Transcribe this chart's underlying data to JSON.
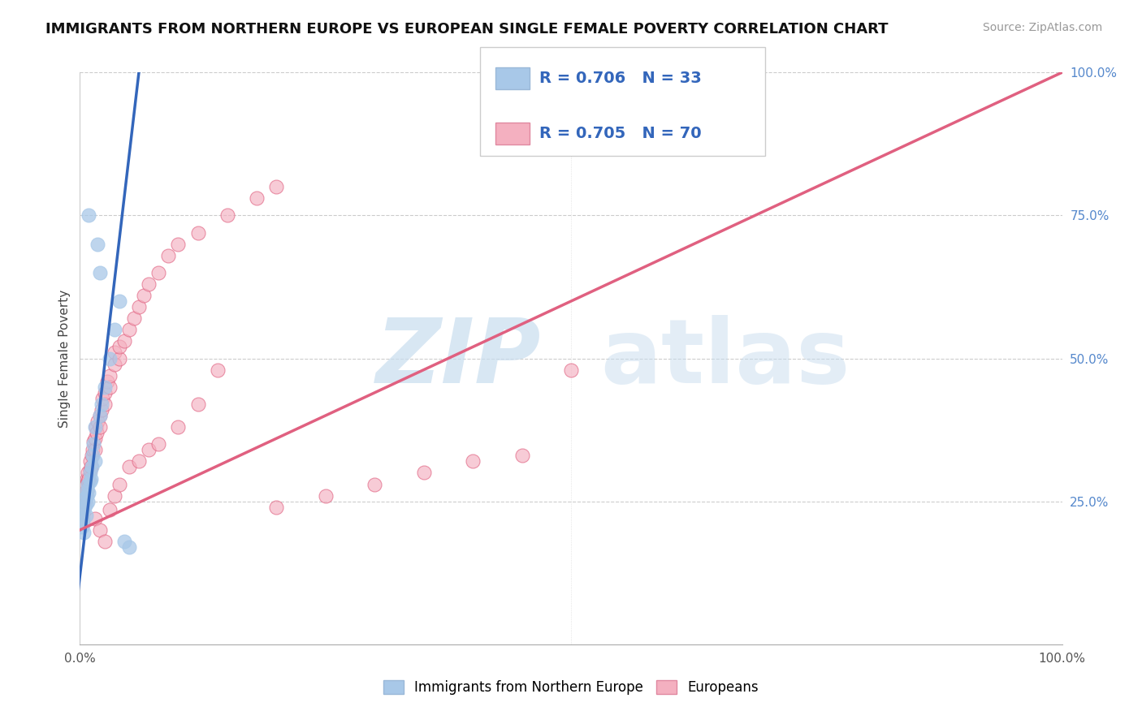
{
  "title": "IMMIGRANTS FROM NORTHERN EUROPE VS EUROPEAN SINGLE FEMALE POVERTY CORRELATION CHART",
  "source": "Source: ZipAtlas.com",
  "ylabel": "Single Female Poverty",
  "legend_blue_label": "Immigrants from Northern Europe",
  "legend_pink_label": "Europeans",
  "blue_color": "#a8c8e8",
  "blue_line_color": "#3366bb",
  "pink_color": "#f4b0c0",
  "pink_line_color": "#e06080",
  "blue_scatter": [
    [
      0.2,
      20.5
    ],
    [
      0.3,
      21.0
    ],
    [
      0.3,
      22.0
    ],
    [
      0.4,
      19.5
    ],
    [
      0.4,
      23.5
    ],
    [
      0.5,
      24.0
    ],
    [
      0.5,
      25.5
    ],
    [
      0.6,
      22.5
    ],
    [
      0.6,
      24.5
    ],
    [
      0.7,
      26.0
    ],
    [
      0.7,
      27.0
    ],
    [
      0.8,
      25.0
    ],
    [
      0.8,
      28.0
    ],
    [
      0.9,
      26.5
    ],
    [
      1.0,
      28.5
    ],
    [
      1.0,
      30.0
    ],
    [
      1.1,
      29.0
    ],
    [
      1.2,
      31.0
    ],
    [
      1.3,
      33.0
    ],
    [
      1.4,
      35.0
    ],
    [
      1.5,
      32.0
    ],
    [
      1.5,
      38.0
    ],
    [
      2.0,
      40.0
    ],
    [
      2.2,
      42.0
    ],
    [
      2.5,
      45.0
    ],
    [
      3.0,
      50.0
    ],
    [
      3.5,
      55.0
    ],
    [
      4.0,
      60.0
    ],
    [
      1.8,
      70.0
    ],
    [
      2.0,
      65.0
    ],
    [
      0.9,
      75.0
    ],
    [
      4.5,
      18.0
    ],
    [
      5.0,
      17.0
    ]
  ],
  "pink_scatter": [
    [
      0.2,
      22.0
    ],
    [
      0.3,
      23.0
    ],
    [
      0.3,
      25.0
    ],
    [
      0.4,
      24.0
    ],
    [
      0.4,
      26.0
    ],
    [
      0.5,
      25.0
    ],
    [
      0.5,
      27.5
    ],
    [
      0.6,
      26.0
    ],
    [
      0.6,
      28.0
    ],
    [
      0.7,
      27.0
    ],
    [
      0.7,
      29.0
    ],
    [
      0.8,
      28.5
    ],
    [
      0.8,
      30.0
    ],
    [
      0.9,
      29.0
    ],
    [
      1.0,
      30.5
    ],
    [
      1.0,
      32.0
    ],
    [
      1.1,
      31.0
    ],
    [
      1.2,
      33.0
    ],
    [
      1.3,
      34.0
    ],
    [
      1.4,
      35.5
    ],
    [
      1.5,
      34.0
    ],
    [
      1.5,
      36.0
    ],
    [
      1.6,
      38.0
    ],
    [
      1.7,
      37.0
    ],
    [
      1.8,
      39.0
    ],
    [
      2.0,
      38.0
    ],
    [
      2.0,
      40.0
    ],
    [
      2.2,
      41.0
    ],
    [
      2.3,
      43.0
    ],
    [
      2.5,
      42.0
    ],
    [
      2.5,
      44.0
    ],
    [
      2.8,
      46.0
    ],
    [
      3.0,
      45.0
    ],
    [
      3.0,
      47.0
    ],
    [
      3.5,
      49.0
    ],
    [
      3.5,
      51.0
    ],
    [
      4.0,
      50.0
    ],
    [
      4.0,
      52.0
    ],
    [
      4.5,
      53.0
    ],
    [
      5.0,
      55.0
    ],
    [
      5.5,
      57.0
    ],
    [
      6.0,
      59.0
    ],
    [
      6.5,
      61.0
    ],
    [
      7.0,
      63.0
    ],
    [
      8.0,
      65.0
    ],
    [
      9.0,
      68.0
    ],
    [
      10.0,
      70.0
    ],
    [
      12.0,
      72.0
    ],
    [
      15.0,
      75.0
    ],
    [
      18.0,
      78.0
    ],
    [
      20.0,
      80.0
    ],
    [
      1.5,
      22.0
    ],
    [
      2.0,
      20.0
    ],
    [
      2.5,
      18.0
    ],
    [
      3.0,
      23.5
    ],
    [
      3.5,
      26.0
    ],
    [
      4.0,
      28.0
    ],
    [
      5.0,
      31.0
    ],
    [
      6.0,
      32.0
    ],
    [
      7.0,
      34.0
    ],
    [
      8.0,
      35.0
    ],
    [
      10.0,
      38.0
    ],
    [
      12.0,
      42.0
    ],
    [
      14.0,
      48.0
    ],
    [
      20.0,
      24.0
    ],
    [
      25.0,
      26.0
    ],
    [
      30.0,
      28.0
    ],
    [
      35.0,
      30.0
    ],
    [
      40.0,
      32.0
    ],
    [
      45.0,
      33.0
    ],
    [
      50.0,
      48.0
    ]
  ],
  "blue_line_x": [
    0,
    6
  ],
  "blue_line_y": [
    12,
    100
  ],
  "pink_line_x": [
    0,
    100
  ],
  "pink_line_y": [
    20,
    100
  ],
  "xlim": [
    0,
    100
  ],
  "ylim": [
    0,
    100
  ],
  "right_yticks": [
    25,
    50,
    75,
    100
  ],
  "right_yticklabels": [
    "25.0%",
    "50.0%",
    "75.0%",
    "100.0%"
  ]
}
